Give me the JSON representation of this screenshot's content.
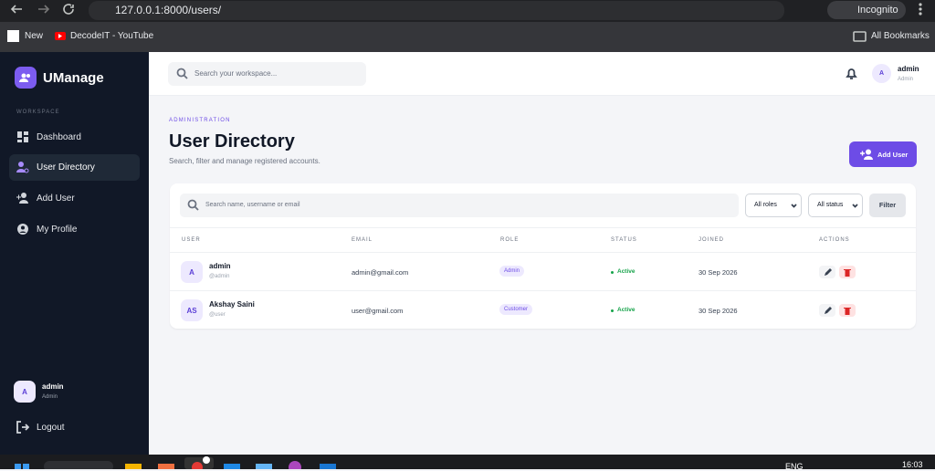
{
  "browser": {
    "url": "127.0.0.1:8000/users/",
    "profile": "Incognito",
    "bookmarks": [
      "New",
      "DecodeIT - YouTube"
    ],
    "all_bookmarks": "All Bookmarks"
  },
  "sidebar": {
    "brand": "UManage",
    "section": "WORKSPACE",
    "nav": [
      "Dashboard",
      "User Directory",
      "Add User",
      "My Profile"
    ],
    "user": {
      "avatar": "A",
      "name": "admin",
      "role": "Admin"
    },
    "logout": "Logout"
  },
  "topbar": {
    "search_placeholder": "Search your workspace...",
    "user": {
      "avatar": "A",
      "name": "admin",
      "role": "Admin"
    }
  },
  "header": {
    "eyebrow": "ADMINISTRATION",
    "title": "User Directory",
    "subtitle": "Search, filter and manage registered accounts.",
    "button": "Add User"
  },
  "filters": {
    "search_placeholder": "Search name, username or email",
    "roles": "All roles",
    "status": "All status",
    "button": "Filter"
  },
  "table": {
    "columns": [
      "USER",
      "EMAIL",
      "ROLE",
      "STATUS",
      "JOINED",
      "ACTIONS"
    ],
    "rows": [
      {
        "avatar": "A",
        "name": "admin",
        "username": "@admin",
        "email": "admin@gmail.com",
        "role": "Admin",
        "status": "Active",
        "joined": "30 Sep 2026"
      },
      {
        "avatar": "AS",
        "name": "Akshay Saini",
        "username": "@user",
        "email": "user@gmail.com",
        "role": "Customer",
        "status": "Active",
        "joined": "30 Sep 2026"
      }
    ]
  },
  "taskbar": {
    "language": "ENG",
    "time": "16:03"
  }
}
